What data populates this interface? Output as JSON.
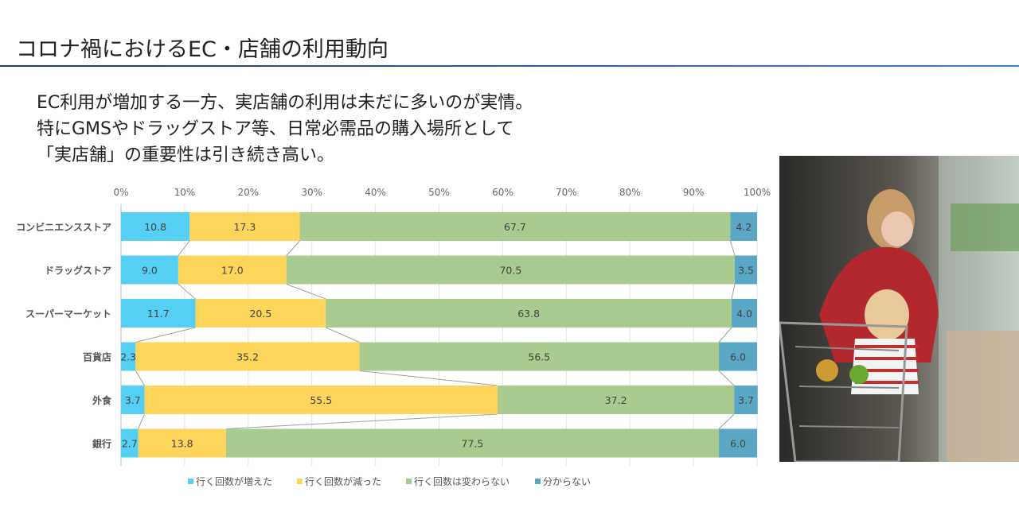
{
  "slide": {
    "title": "コロナ禍におけるEC・店舗の利用動向",
    "lead": [
      "EC利用が増加する一方、実店舗の利用は未だに多いのが実情。",
      "特にGMSやドラッグストア等、日常必需品の購入場所として",
      "「実店舗」の重要性は引き続き高い。"
    ]
  },
  "chart_data": {
    "type": "bar",
    "orientation": "horizontal",
    "stacked": true,
    "categories": [
      "コンビニエンスストア",
      "ドラッグストア",
      "スーパーマーケット",
      "百貨店",
      "外食",
      "銀行"
    ],
    "series": [
      {
        "name": "行く回数が増えた",
        "color": "#55d0f4",
        "values": [
          10.8,
          9.0,
          11.7,
          2.3,
          3.7,
          2.7
        ]
      },
      {
        "name": "行く回数が減った",
        "color": "#fdd55b",
        "values": [
          17.3,
          17.0,
          20.5,
          35.2,
          55.5,
          13.8
        ]
      },
      {
        "name": "行く回数は変わらない",
        "color": "#a9cb8f",
        "values": [
          67.7,
          70.5,
          63.8,
          56.5,
          37.2,
          77.5
        ]
      },
      {
        "name": "分からない",
        "color": "#5aa6c5",
        "values": [
          4.2,
          3.5,
          4.0,
          6.0,
          3.7,
          6.0
        ]
      }
    ],
    "xticks": [
      "0%",
      "10%",
      "20%",
      "30%",
      "40%",
      "50%",
      "60%",
      "70%",
      "80%",
      "90%",
      "100%"
    ],
    "xlim": [
      0,
      100
    ],
    "axis_position": "top",
    "grid": true,
    "series_lines": true,
    "legend": "bottom"
  },
  "photo": {
    "subject": "woman-and-child-shopping-photo"
  }
}
